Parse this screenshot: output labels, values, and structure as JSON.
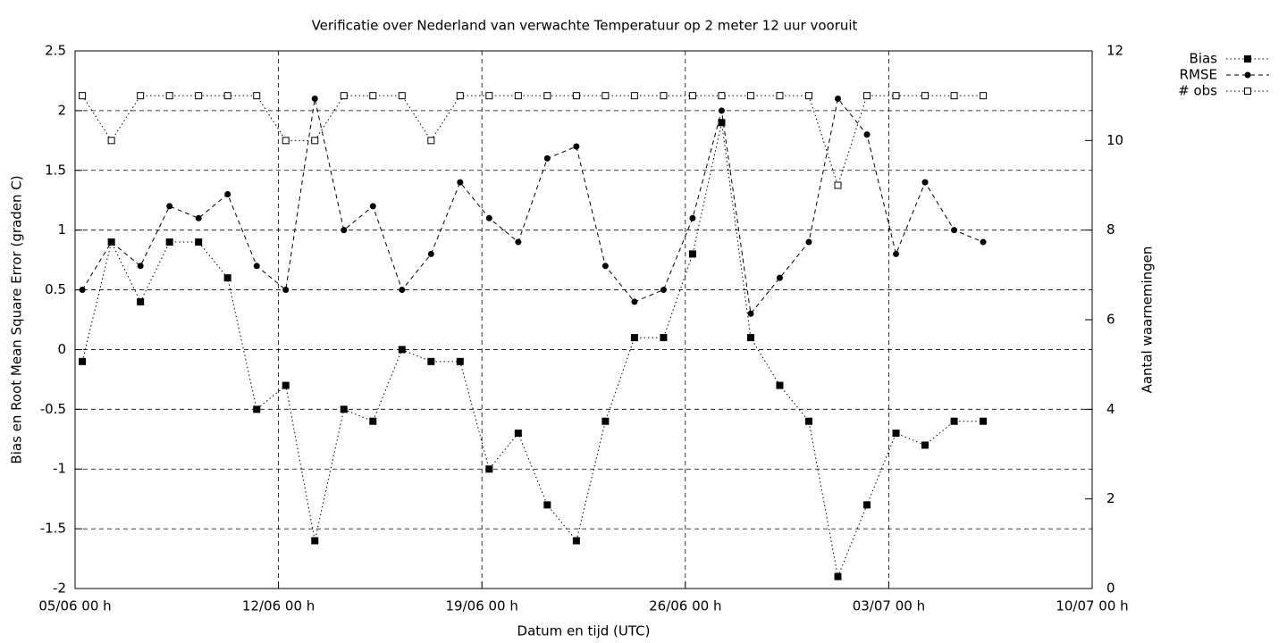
{
  "chart_data": {
    "type": "line",
    "title": "Verificatie over Nederland van verwachte Temperatuur op 2 meter 12 uur vooruit",
    "xlabel": "Datum en tijd (UTC)",
    "ylabel": "Bias en Root Mean Square Error (graden C)",
    "y2label": "Aantal waarnemingen",
    "x": [
      "05/06 06 h",
      "06/06 06 h",
      "07/06 06 h",
      "08/06 06 h",
      "09/06 06 h",
      "10/06 06 h",
      "11/06 06 h",
      "12/06 06 h",
      "13/06 06 h",
      "14/06 06 h",
      "15/06 06 h",
      "16/06 06 h",
      "17/06 06 h",
      "18/06 06 h",
      "19/06 06 h",
      "20/06 06 h",
      "21/06 06 h",
      "22/06 06 h",
      "23/06 06 h",
      "24/06 06 h",
      "25/06 06 h",
      "26/06 06 h",
      "27/06 06 h",
      "28/06 06 h",
      "29/06 06 h",
      "30/06 06 h",
      "01/07 06 h",
      "02/07 06 h",
      "03/07 06 h",
      "04/07 06 h",
      "05/07 06 h",
      "06/07 06 h"
    ],
    "xlim": [
      "05/06 00 h",
      "10/07 00 h"
    ],
    "xticks": [
      "05/06 00 h",
      "12/06 00 h",
      "19/06 00 h",
      "26/06 00 h",
      "03/07 00 h",
      "10/07 00 h"
    ],
    "ylim": [
      -2,
      2.5
    ],
    "yticks": [
      -2,
      -1.5,
      -1,
      -0.5,
      0,
      0.5,
      1,
      1.5,
      2,
      2.5
    ],
    "y2lim": [
      0,
      12
    ],
    "y2ticks": [
      0,
      2,
      4,
      6,
      8,
      10,
      12
    ],
    "grid": true,
    "legend": "top-right",
    "series": [
      {
        "name": "Bias",
        "color": "#000000",
        "dash": "dotted",
        "marker": "square-filled",
        "values": [
          -0.1,
          0.9,
          0.4,
          0.9,
          0.9,
          0.6,
          -0.5,
          -0.3,
          -1.6,
          -0.5,
          -0.6,
          0,
          -0.1,
          -0.1,
          -1,
          -0.7,
          -1.3,
          -1.6,
          -0.6,
          0.1,
          0.1,
          0.8,
          1.9,
          0.1,
          -0.3,
          -0.6,
          -1.9,
          -1.3,
          -0.7,
          -0.8,
          -0.6,
          -0.6
        ]
      },
      {
        "name": "RMSE",
        "color": "#000000",
        "dash": "dashed",
        "marker": "circle-filled",
        "values": [
          0.5,
          0.9,
          0.7,
          1.2,
          1.1,
          1.3,
          0.7,
          0.5,
          2.1,
          1,
          1.2,
          0.5,
          0.8,
          1.4,
          1.1,
          0.9,
          1.6,
          1.7,
          0.7,
          0.4,
          0.5,
          1.1,
          2,
          0.3,
          0.6,
          0.9,
          2.1,
          1.8,
          0.8,
          1.4,
          1,
          0.9
        ]
      },
      {
        "name": "# obs",
        "color": "#000000",
        "dash": "dotted",
        "marker": "square-open",
        "axis": "y2",
        "values": [
          11,
          10,
          11,
          11,
          11,
          11,
          11,
          10,
          10,
          11,
          11,
          11,
          10,
          11,
          11,
          11,
          11,
          11,
          11,
          11,
          11,
          11,
          11,
          11,
          11,
          11,
          9,
          11,
          11,
          11,
          11,
          11
        ]
      }
    ]
  }
}
